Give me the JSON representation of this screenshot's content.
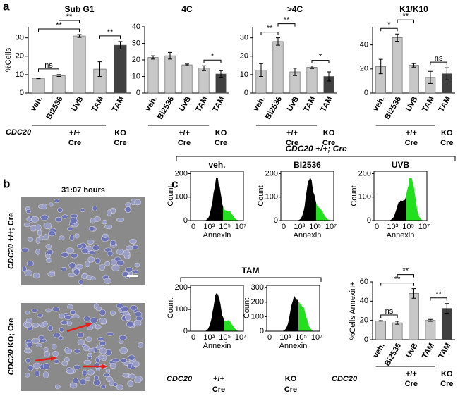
{
  "panels": {
    "a": "a",
    "b": "b",
    "c": "c"
  },
  "genotype": {
    "gene": "CDC20",
    "wt": "+/+",
    "ko": "KO",
    "cre": "Cre"
  },
  "chart_data": [
    {
      "type": "bar",
      "title": "Sub G1",
      "ylabel": "%Cells",
      "categories": [
        "veh.",
        "Bi2536",
        "UvB",
        "TAM",
        "TAM"
      ],
      "values": [
        8,
        9.5,
        31,
        13,
        26
      ],
      "errors": [
        0.2,
        0.5,
        0.8,
        4,
        2
      ],
      "colors": [
        "#c8c8c8",
        "#c8c8c8",
        "#c8c8c8",
        "#c8c8c8",
        "#404040"
      ],
      "ylim": [
        0,
        36
      ],
      "yticks": [
        0,
        10,
        20,
        30
      ],
      "annotations": [
        {
          "label": "ns",
          "pair": [
            0,
            1
          ]
        },
        {
          "label": "**",
          "pair": [
            0,
            2
          ]
        },
        {
          "label": "**",
          "pair": [
            1,
            2
          ]
        },
        {
          "label": "**",
          "pair": [
            3,
            4
          ]
        }
      ]
    },
    {
      "type": "bar",
      "title": "4C",
      "categories": [
        "veh.",
        "Bi2536",
        "UvB",
        "TAM",
        "TAM"
      ],
      "values": [
        21.5,
        22.5,
        17,
        15,
        11.5
      ],
      "errors": [
        1,
        2,
        0.5,
        1.5,
        2
      ],
      "colors": [
        "#c8c8c8",
        "#c8c8c8",
        "#c8c8c8",
        "#c8c8c8",
        "#404040"
      ],
      "ylim": [
        0,
        40
      ],
      "yticks": [
        0,
        10,
        20,
        30,
        40
      ],
      "annotations": [
        {
          "label": "*",
          "pair": [
            3,
            4
          ]
        }
      ]
    },
    {
      "type": "bar",
      "title": ">4C",
      "categories": [
        "veh.",
        "Bi2536",
        "UvB",
        "TAM",
        "TAM"
      ],
      "values": [
        12.5,
        28,
        11.5,
        14,
        9
      ],
      "errors": [
        3.5,
        2,
        2,
        0.7,
        2.5
      ],
      "colors": [
        "#c8c8c8",
        "#c8c8c8",
        "#c8c8c8",
        "#c8c8c8",
        "#404040"
      ],
      "ylim": [
        0,
        36
      ],
      "yticks": [
        0,
        10,
        20,
        30
      ],
      "annotations": [
        {
          "label": "**",
          "pair": [
            0,
            1
          ]
        },
        {
          "label": "**",
          "pair": [
            1,
            2
          ]
        },
        {
          "label": "*",
          "pair": [
            3,
            4
          ]
        }
      ]
    },
    {
      "type": "bar",
      "title": "K1/K10",
      "categories": [
        "veh.",
        "Bi2536",
        "UvB",
        "TAM",
        "TAM"
      ],
      "values": [
        22,
        46,
        23,
        13,
        16
      ],
      "errors": [
        6,
        3,
        1.5,
        5,
        5
      ],
      "colors": [
        "#c8c8c8",
        "#c8c8c8",
        "#c8c8c8",
        "#c8c8c8",
        "#404040"
      ],
      "ylim": [
        0,
        55
      ],
      "yticks": [
        0,
        20,
        40
      ],
      "annotations": [
        {
          "label": "*",
          "pair": [
            0,
            1
          ]
        },
        {
          "label": "**",
          "pair": [
            1,
            2
          ]
        },
        {
          "label": "ns",
          "pair": [
            3,
            4
          ]
        }
      ]
    },
    {
      "type": "bar",
      "ylabel": "%Cells Annexin+",
      "categories": [
        "veh.",
        "Bi2536",
        "UvB",
        "TAM",
        "TAM"
      ],
      "values": [
        19.5,
        17.5,
        48,
        20,
        32.5
      ],
      "errors": [
        0.3,
        1.5,
        5,
        1,
        5
      ],
      "colors": [
        "#c8c8c8",
        "#c8c8c8",
        "#c8c8c8",
        "#c8c8c8",
        "#404040"
      ],
      "ylim": [
        0,
        60
      ],
      "yticks": [
        0,
        20,
        40,
        60
      ],
      "annotations": [
        {
          "label": "ns",
          "pair": [
            0,
            1
          ]
        },
        {
          "label": "**",
          "pair": [
            0,
            2
          ]
        },
        {
          "label": "**",
          "pair": [
            1,
            2
          ]
        },
        {
          "label": "**",
          "pair": [
            3,
            4
          ]
        }
      ]
    }
  ],
  "microscopy": {
    "time": "31:07 hours",
    "rows": [
      "+/+; Cre",
      "KO; Cre"
    ]
  },
  "flow": {
    "group_title": "CDC20 +/+; Cre",
    "tam_title": "TAM",
    "ylabel": "Count",
    "xlabel": "Annexin",
    "xtick_labels": [
      "0",
      "10³",
      "10⁵",
      "10⁷"
    ],
    "plots": [
      {
        "title": "veh.",
        "yticks": [
          0,
          100,
          200
        ]
      },
      {
        "title": "BI2536",
        "yticks": [
          0,
          100,
          200
        ]
      },
      {
        "title": "UVB",
        "yticks": [
          0,
          100,
          200
        ]
      },
      {
        "yticks": [
          0,
          100,
          200
        ]
      },
      {
        "yticks": [
          0,
          100,
          200,
          300
        ]
      }
    ]
  }
}
